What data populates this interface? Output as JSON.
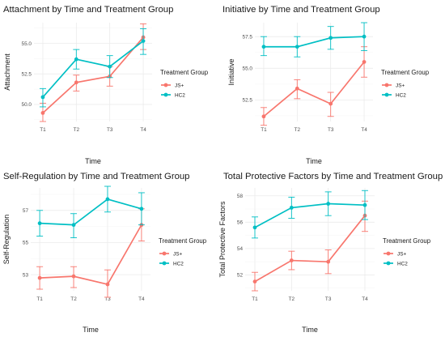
{
  "colors": {
    "JS+": "#F8766D",
    "HC2": "#00BFC4"
  },
  "chart_data": [
    {
      "type": "line",
      "title": "Attachment by Time and Treatment Group",
      "xlabel": "Time",
      "ylabel": "Attachment",
      "categories": [
        "T1",
        "T2",
        "T3",
        "T4"
      ],
      "ylim": [
        48.6,
        56.7
      ],
      "yticks": [
        50.0,
        52.5,
        55.0
      ],
      "ytick_labels": [
        "50.0",
        "52.5",
        "55.0"
      ],
      "legend_title": "Treatment Group",
      "series": [
        {
          "name": "JS+",
          "values": [
            49.3,
            51.8,
            52.3,
            55.5
          ],
          "lower": [
            48.6,
            51.1,
            51.5,
            54.5
          ],
          "upper": [
            50.1,
            52.4,
            53.1,
            56.6
          ]
        },
        {
          "name": "HC2",
          "values": [
            50.6,
            53.7,
            53.1,
            55.2
          ],
          "lower": [
            49.8,
            52.9,
            52.2,
            54.1
          ],
          "upper": [
            51.3,
            54.5,
            54.0,
            56.2
          ]
        }
      ]
    },
    {
      "type": "line",
      "title": "Initiative by Time and Treatment Group",
      "xlabel": "Time",
      "ylabel": "Initiative",
      "categories": [
        "T1",
        "T2",
        "T3",
        "T4"
      ],
      "ylim": [
        50.8,
        58.6
      ],
      "yticks": [
        52.5,
        55.0,
        57.5
      ],
      "ytick_labels": [
        "52.5",
        "55.0",
        "57.5"
      ],
      "legend_title": "Treatment Group",
      "series": [
        {
          "name": "JS+",
          "values": [
            51.2,
            53.4,
            52.2,
            55.5
          ],
          "lower": [
            50.5,
            52.6,
            51.2,
            54.3
          ],
          "upper": [
            51.9,
            54.1,
            53.1,
            56.7
          ]
        },
        {
          "name": "HC2",
          "values": [
            56.7,
            56.7,
            57.4,
            57.5
          ],
          "lower": [
            56.0,
            55.9,
            56.5,
            56.4
          ],
          "upper": [
            57.5,
            57.5,
            58.3,
            58.6
          ]
        }
      ]
    },
    {
      "type": "line",
      "title": "Self-Regulation by Time and Treatment Group",
      "xlabel": "Time",
      "ylabel": "Self-Regulation",
      "categories": [
        "T1",
        "T2",
        "T3",
        "T4"
      ],
      "ylim": [
        52.0,
        58.4
      ],
      "yticks": [
        53,
        55,
        57
      ],
      "ytick_labels": [
        "53",
        "55",
        "57"
      ],
      "legend_title": "Treatment Group",
      "series": [
        {
          "name": "JS+",
          "values": [
            52.8,
            52.9,
            52.4,
            56.1
          ],
          "lower": [
            52.1,
            52.2,
            51.6,
            55.1
          ],
          "upper": [
            53.5,
            53.5,
            53.3,
            57.1
          ]
        },
        {
          "name": "HC2",
          "values": [
            56.2,
            56.1,
            57.7,
            57.1
          ],
          "lower": [
            55.4,
            55.3,
            56.9,
            56.1
          ],
          "upper": [
            57.0,
            56.8,
            58.5,
            58.1
          ]
        }
      ]
    },
    {
      "type": "line",
      "title": "Total Protective Factors by Time and Treatment Group",
      "xlabel": "Time",
      "ylabel": "Total Protective Factors",
      "categories": [
        "T1",
        "T2",
        "T3",
        "T4"
      ],
      "ylim": [
        50.8,
        58.6
      ],
      "yticks": [
        52,
        54,
        56,
        58
      ],
      "ytick_labels": [
        "52",
        "54",
        "56",
        "58"
      ],
      "legend_title": "Treatment Group",
      "series": [
        {
          "name": "JS+",
          "values": [
            51.5,
            53.1,
            53.0,
            56.5
          ],
          "lower": [
            50.8,
            52.4,
            52.1,
            55.3
          ],
          "upper": [
            52.2,
            53.8,
            53.9,
            57.6
          ]
        },
        {
          "name": "HC2",
          "values": [
            55.6,
            57.1,
            57.4,
            57.3
          ],
          "lower": [
            54.8,
            56.3,
            56.5,
            56.2
          ],
          "upper": [
            56.4,
            57.9,
            58.3,
            58.4
          ]
        }
      ]
    }
  ]
}
